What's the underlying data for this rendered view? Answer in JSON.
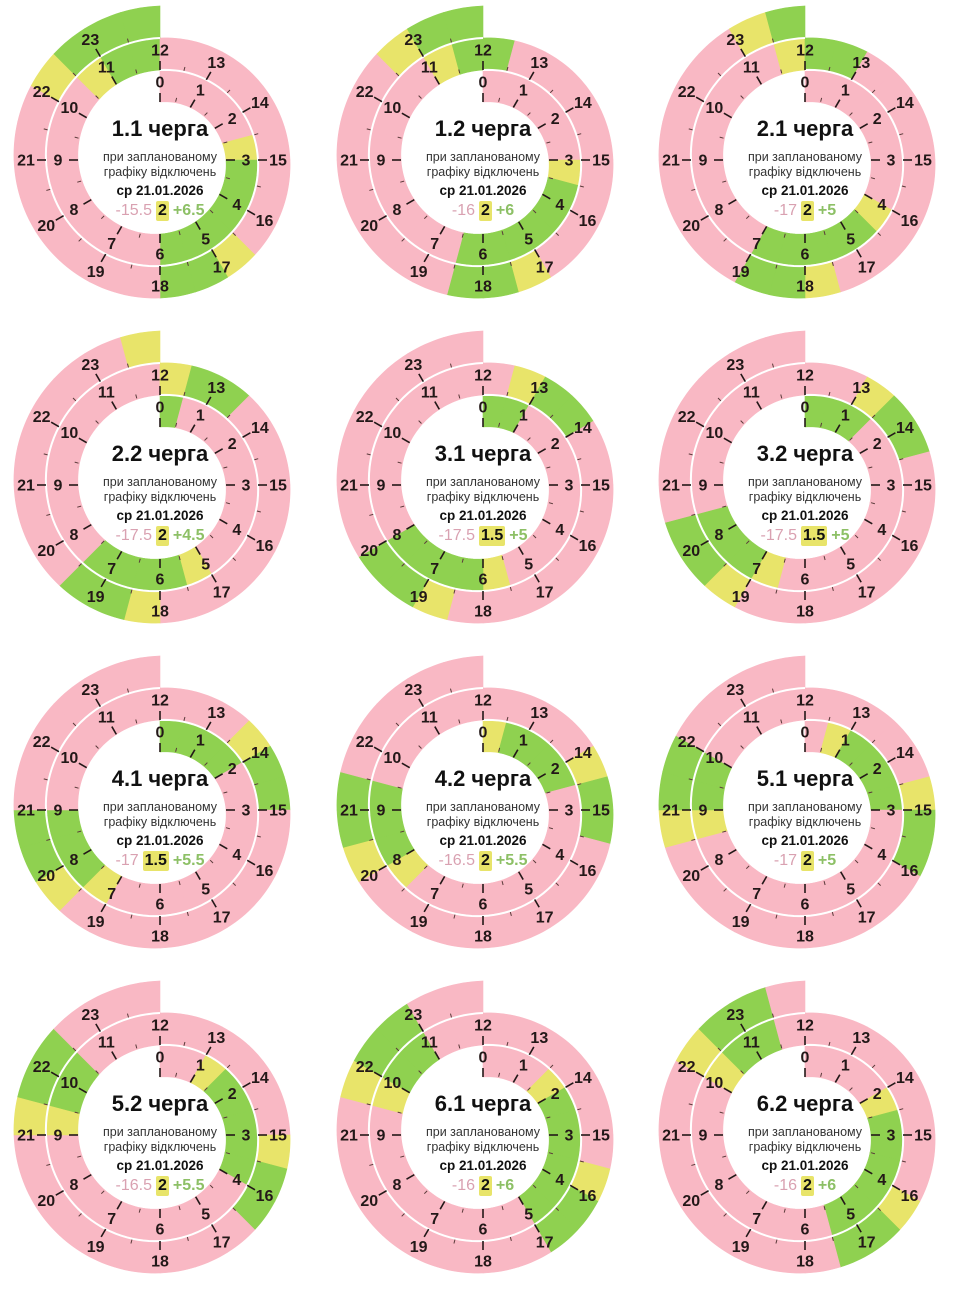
{
  "colors": {
    "off": "#f9b8c4",
    "on": "#8fd150",
    "maybe": "#e8e46a",
    "stat_off": "#d9a1b1",
    "stat_on": "#8dc066",
    "label": "#231818",
    "separator": "#ffffff"
  },
  "schedule_codes": {
    "P": "off",
    "G": "on",
    "Y": "maybe"
  },
  "hour_labels": [
    "0",
    "1",
    "2",
    "3",
    "4",
    "5",
    "6",
    "7",
    "8",
    "9",
    "10",
    "11",
    "12",
    "13",
    "14",
    "15",
    "16",
    "17",
    "18",
    "19",
    "20",
    "21",
    "22",
    "23"
  ],
  "charts": [
    {
      "title": "1.1 черга",
      "subtitle_line1": "при запланованому",
      "subtitle_line2": "графіку відключень",
      "date": "ср 21.01.2026",
      "stat_off": "-15.5",
      "stat_maybe": "2",
      "stat_on": "+6.5",
      "schedule": [
        "PP",
        "PP",
        "PY",
        "GG",
        "GG",
        "GG",
        "PP",
        "PP",
        "PP",
        "PP",
        "PY",
        "GG",
        "PP",
        "PP",
        "PP",
        "PP",
        "PY",
        "GG",
        "PP",
        "PP",
        "PP",
        "PP",
        "YG",
        "GG"
      ]
    },
    {
      "title": "1.2 черга",
      "subtitle_line1": "при запланованому",
      "subtitle_line2": "графіку відключень",
      "date": "ср 21.01.2026",
      "stat_off": "-16",
      "stat_maybe": "2",
      "stat_on": "+6",
      "schedule": [
        "PP",
        "PP",
        "PP",
        "YG",
        "GG",
        "GG",
        "GP",
        "PP",
        "PP",
        "PP",
        "PP",
        "YG",
        "GP",
        "PP",
        "PP",
        "PP",
        "PP",
        "YG",
        "GP",
        "PP",
        "PP",
        "PP",
        "PY",
        "GG"
      ]
    },
    {
      "title": "2.1 черга",
      "subtitle_line1": "при запланованому",
      "subtitle_line2": "графіку відключень",
      "date": "ср 21.01.2026",
      "stat_off": "-17",
      "stat_maybe": "2",
      "stat_on": "+5",
      "schedule": [
        "PP",
        "PP",
        "PP",
        "PP",
        "YG",
        "GG",
        "GG",
        "PP",
        "PP",
        "PP",
        "PP",
        "PY",
        "GG",
        "PP",
        "PP",
        "PP",
        "PP",
        "PY",
        "GG",
        "PP",
        "PP",
        "PP",
        "PP",
        "YG"
      ]
    },
    {
      "title": "2.2 черга",
      "subtitle_line1": "при запланованому",
      "subtitle_line2": "графіку відключень",
      "date": "ср 21.01.2026",
      "stat_off": "-17.5",
      "stat_maybe": "2",
      "stat_on": "+4.5",
      "schedule": [
        "GP",
        "PP",
        "PP",
        "PP",
        "PP",
        "YG",
        "GG",
        "GP",
        "PP",
        "PP",
        "PP",
        "PP",
        "YG",
        "GP",
        "PP",
        "PP",
        "PP",
        "PP",
        "YG",
        "GP",
        "PP",
        "PP",
        "PP",
        "PY"
      ]
    },
    {
      "title": "3.1 черга",
      "subtitle_line1": "при запланованому",
      "subtitle_line2": "графіку відключень",
      "date": "ср 21.01.2026",
      "stat_off": "-17.5",
      "stat_maybe": "1.5",
      "stat_on": "+5",
      "schedule": [
        "GG",
        "PP",
        "PP",
        "PP",
        "PP",
        "PY",
        "GG",
        "GG",
        "PP",
        "PP",
        "PP",
        "PP",
        "PY",
        "GG",
        "PP",
        "PP",
        "PP",
        "PP",
        "PY",
        "GG",
        "PP",
        "PP",
        "PP",
        "PP"
      ]
    },
    {
      "title": "3.2 черга",
      "subtitle_line1": "при запланованому",
      "subtitle_line2": "графіку відключень",
      "date": "ср 21.01.2026",
      "stat_off": "-17.5",
      "stat_maybe": "1.5",
      "stat_on": "+5",
      "schedule": [
        "GG",
        "GP",
        "PP",
        "PP",
        "PP",
        "PP",
        "PY",
        "GG",
        "GP",
        "PP",
        "PP",
        "PP",
        "PP",
        "YG",
        "GP",
        "PP",
        "PP",
        "PP",
        "PP",
        "YG",
        "GP",
        "PP",
        "PP",
        "PP"
      ]
    },
    {
      "title": "4.1 черга",
      "subtitle_line1": "при запланованому",
      "subtitle_line2": "графіку відключень",
      "date": "ср 21.01.2026",
      "stat_off": "-17",
      "stat_maybe": "1.5",
      "stat_on": "+5.5",
      "schedule": [
        "GG",
        "GG",
        "PP",
        "PP",
        "PP",
        "PP",
        "PP",
        "YG",
        "GG",
        "PP",
        "PP",
        "PP",
        "PP",
        "PY",
        "GG",
        "PP",
        "PP",
        "PP",
        "PP",
        "PY",
        "GG",
        "PP",
        "PP",
        "PP"
      ]
    },
    {
      "title": "4.2 черга",
      "subtitle_line1": "при запланованому",
      "subtitle_line2": "графіку відключень",
      "date": "ср 21.01.2026",
      "stat_off": "-16.5",
      "stat_maybe": "2",
      "stat_on": "+5.5",
      "schedule": [
        "YG",
        "GG",
        "GP",
        "PP",
        "PP",
        "PP",
        "PP",
        "PY",
        "GG",
        "GP",
        "PP",
        "PP",
        "PP",
        "PP",
        "YG",
        "GP",
        "PP",
        "PP",
        "PP",
        "PP",
        "YG",
        "GP",
        "PP",
        "PP"
      ]
    },
    {
      "title": "5.1 черга",
      "subtitle_line1": "при запланованому",
      "subtitle_line2": "графіку відключень",
      "date": "ср 21.01.2026",
      "stat_off": "-17",
      "stat_maybe": "2",
      "stat_on": "+5",
      "schedule": [
        "PY",
        "GG",
        "GG",
        "PP",
        "PP",
        "PP",
        "PP",
        "PP",
        "PY",
        "GG",
        "PP",
        "PP",
        "PP",
        "PP",
        "PY",
        "GG",
        "PP",
        "PP",
        "PP",
        "PP",
        "PY",
        "GG",
        "PP",
        "PP"
      ]
    },
    {
      "title": "5.2 черга",
      "subtitle_line1": "при запланованому",
      "subtitle_line2": "графіку відключень",
      "date": "ср 21.01.2026",
      "stat_off": "-16.5",
      "stat_maybe": "2",
      "stat_on": "+5.5",
      "schedule": [
        "PP",
        "YG",
        "GG",
        "GG",
        "PP",
        "PP",
        "PP",
        "PP",
        "PP",
        "YG",
        "GP",
        "PP",
        "PP",
        "PP",
        "PP",
        "YG",
        "GP",
        "PP",
        "PP",
        "PP",
        "PP",
        "YG",
        "GP",
        "PP"
      ]
    },
    {
      "title": "6.1 черга",
      "subtitle_line1": "при запланованому",
      "subtitle_line2": "графіку відключень",
      "date": "ср 21.01.2026",
      "stat_off": "-16",
      "stat_maybe": "2",
      "stat_on": "+6",
      "schedule": [
        "PP",
        "PY",
        "GG",
        "GG",
        "GG",
        "PP",
        "PP",
        "PP",
        "PP",
        "PY",
        "GG",
        "PP",
        "PP",
        "PP",
        "PP",
        "PY",
        "GG",
        "PP",
        "PP",
        "PP",
        "PP",
        "PY",
        "GG",
        "PP"
      ]
    },
    {
      "title": "6.2 черга",
      "subtitle_line1": "при запланованому",
      "subtitle_line2": "графіку відключень",
      "date": "ср 21.01.2026",
      "stat_off": "-16",
      "stat_maybe": "2",
      "stat_on": "+6",
      "schedule": [
        "PP",
        "PP",
        "YG",
        "GG",
        "GG",
        "GP",
        "PP",
        "PP",
        "PP",
        "PP",
        "YG",
        "GP",
        "PP",
        "PP",
        "PP",
        "PP",
        "YG",
        "GP",
        "PP",
        "PP",
        "PP",
        "PP",
        "YG",
        "GP"
      ]
    }
  ]
}
